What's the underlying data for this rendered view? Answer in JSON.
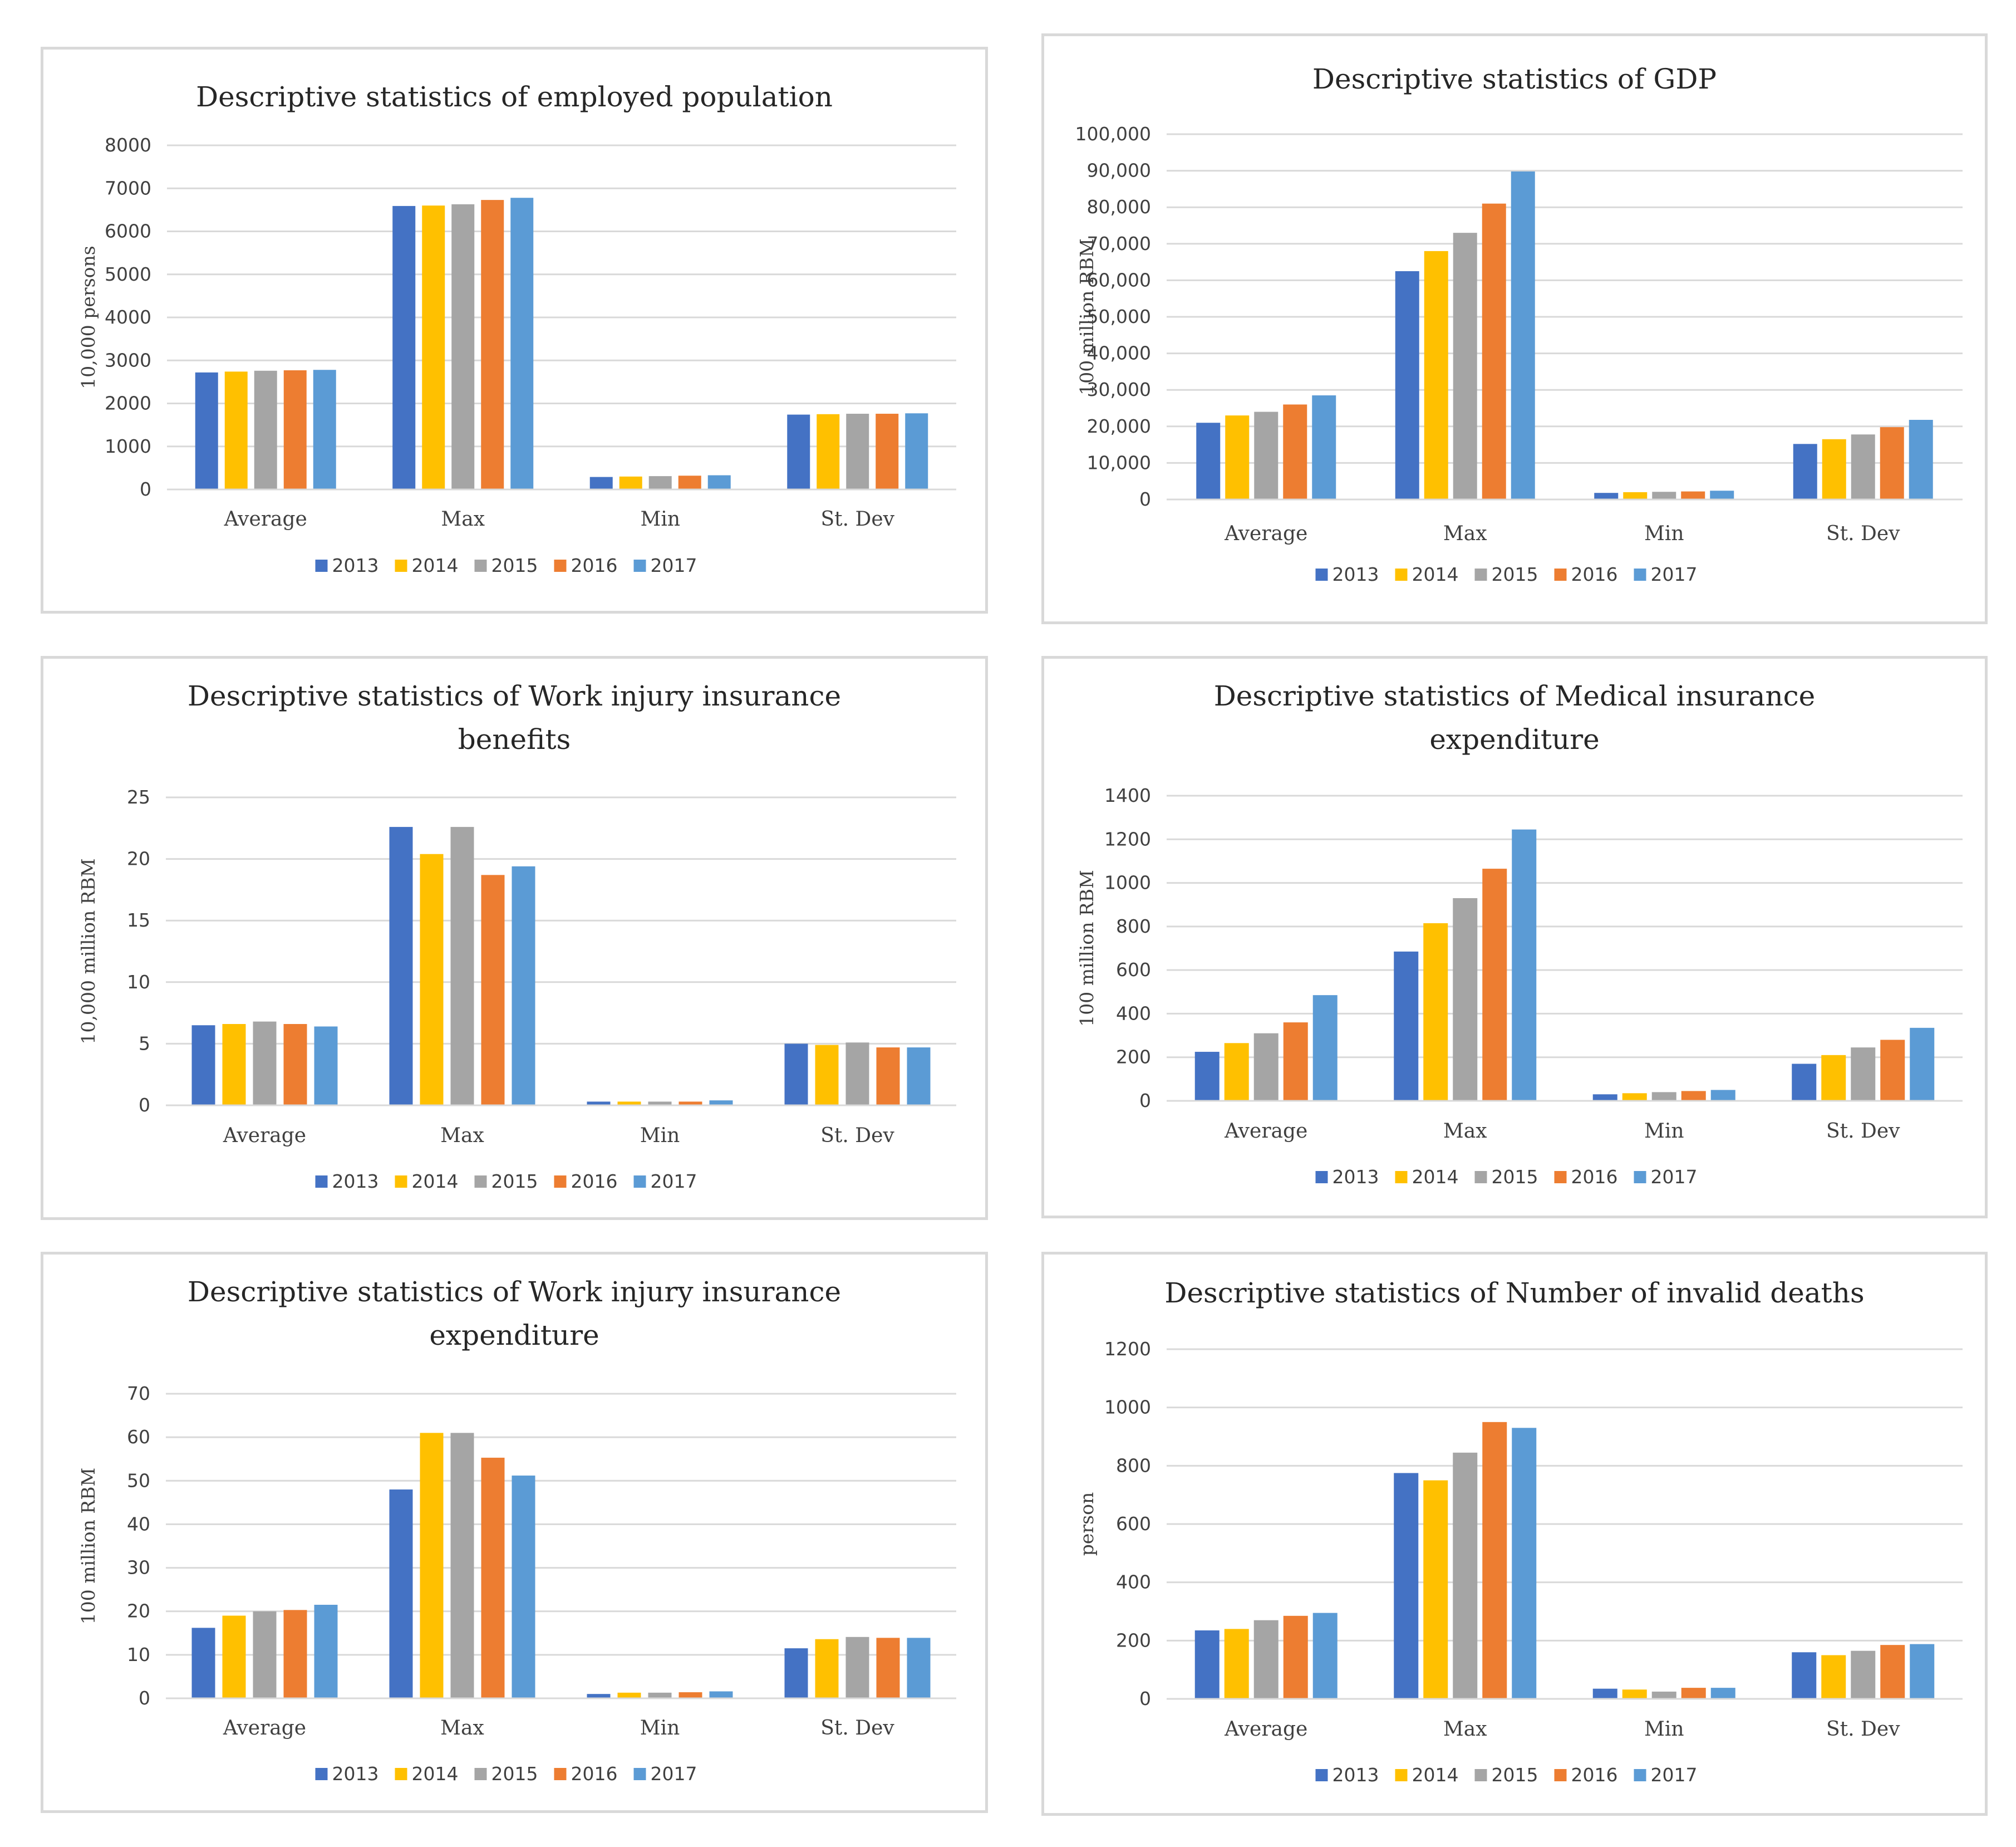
{
  "chart_data": [
    {
      "type": "bar",
      "title": "Descriptive statistics of employed population",
      "title_lines": [
        "Descriptive statistics of employed population"
      ],
      "xlabel": "",
      "ylabel": "10,000 persons",
      "ylim": [
        0,
        8000
      ],
      "ytick_values": [
        0,
        1000,
        2000,
        3000,
        4000,
        5000,
        6000,
        7000,
        8000
      ],
      "ytick_labels": [
        "0",
        "1000",
        "2000",
        "3000",
        "4000",
        "5000",
        "6000",
        "7000",
        "8000"
      ],
      "categories": [
        "Average",
        "Max",
        "Min",
        "St. Dev"
      ],
      "series": [
        {
          "name": "2013",
          "color": "#4472c4",
          "values": [
            2720,
            6590,
            290,
            1740
          ]
        },
        {
          "name": "2014",
          "color": "#ffc000",
          "values": [
            2740,
            6600,
            300,
            1750
          ]
        },
        {
          "name": "2015",
          "color": "#a5a5a5",
          "values": [
            2760,
            6630,
            310,
            1760
          ]
        },
        {
          "name": "2016",
          "color": "#ed7d31",
          "values": [
            2770,
            6730,
            320,
            1760
          ]
        },
        {
          "name": "2017",
          "color": "#5b9bd5",
          "values": [
            2780,
            6780,
            330,
            1770
          ]
        }
      ],
      "grid": true,
      "legend": "bottom"
    },
    {
      "type": "bar",
      "title": "Descriptive statistics of GDP",
      "title_lines": [
        "Descriptive statistics of GDP"
      ],
      "xlabel": "",
      "ylabel": "100 million RBM",
      "ylim": [
        0,
        100000
      ],
      "ytick_values": [
        0,
        10000,
        20000,
        30000,
        40000,
        50000,
        60000,
        70000,
        80000,
        90000,
        100000
      ],
      "ytick_labels": [
        "0",
        "10,000",
        "20,000",
        "30,000",
        "40,000",
        "50,000",
        "60,000",
        "70,000",
        "80,000",
        "90,000",
        "100,000"
      ],
      "categories": [
        "Average",
        "Max",
        "Min",
        "St. Dev"
      ],
      "series": [
        {
          "name": "2013",
          "color": "#4472c4",
          "values": [
            21000,
            62500,
            1800,
            15200
          ]
        },
        {
          "name": "2014",
          "color": "#ffc000",
          "values": [
            23000,
            68000,
            2000,
            16500
          ]
        },
        {
          "name": "2015",
          "color": "#a5a5a5",
          "values": [
            24000,
            73000,
            2100,
            17800
          ]
        },
        {
          "name": "2016",
          "color": "#ed7d31",
          "values": [
            26000,
            81000,
            2200,
            19800
          ]
        },
        {
          "name": "2017",
          "color": "#5b9bd5",
          "values": [
            28500,
            89800,
            2400,
            21800
          ]
        }
      ],
      "grid": true,
      "legend": "bottom"
    },
    {
      "type": "bar",
      "title": "Descriptive statistics of Work injury insurance benefits",
      "title_lines": [
        "Descriptive statistics of Work injury insurance",
        "benefits"
      ],
      "xlabel": "",
      "ylabel": "10,000 million RBM",
      "ylim": [
        0,
        25
      ],
      "ytick_values": [
        0,
        5,
        10,
        15,
        20,
        25
      ],
      "ytick_labels": [
        "0",
        "5",
        "10",
        "15",
        "20",
        "25"
      ],
      "categories": [
        "Average",
        "Max",
        "Min",
        "St. Dev"
      ],
      "series": [
        {
          "name": "2013",
          "color": "#4472c4",
          "values": [
            6.5,
            22.6,
            0.3,
            5.0
          ]
        },
        {
          "name": "2014",
          "color": "#ffc000",
          "values": [
            6.6,
            20.4,
            0.3,
            4.9
          ]
        },
        {
          "name": "2015",
          "color": "#a5a5a5",
          "values": [
            6.8,
            22.6,
            0.3,
            5.1
          ]
        },
        {
          "name": "2016",
          "color": "#ed7d31",
          "values": [
            6.6,
            18.7,
            0.3,
            4.7
          ]
        },
        {
          "name": "2017",
          "color": "#5b9bd5",
          "values": [
            6.4,
            19.4,
            0.4,
            4.7
          ]
        }
      ],
      "grid": true,
      "legend": "bottom"
    },
    {
      "type": "bar",
      "title": "Descriptive statistics of Medical insurance expenditure",
      "title_lines": [
        "Descriptive statistics of Medical insurance",
        "expenditure"
      ],
      "xlabel": "",
      "ylabel": "100 million RBM",
      "ylim": [
        0,
        1400
      ],
      "ytick_values": [
        0,
        200,
        400,
        600,
        800,
        1000,
        1200,
        1400
      ],
      "ytick_labels": [
        "0",
        "200",
        "400",
        "600",
        "800",
        "1000",
        "1200",
        "1400"
      ],
      "categories": [
        "Average",
        "Max",
        "Min",
        "St. Dev"
      ],
      "series": [
        {
          "name": "2013",
          "color": "#4472c4",
          "values": [
            225,
            685,
            30,
            170
          ]
        },
        {
          "name": "2014",
          "color": "#ffc000",
          "values": [
            265,
            815,
            35,
            210
          ]
        },
        {
          "name": "2015",
          "color": "#a5a5a5",
          "values": [
            310,
            930,
            40,
            245
          ]
        },
        {
          "name": "2016",
          "color": "#ed7d31",
          "values": [
            360,
            1065,
            45,
            280
          ]
        },
        {
          "name": "2017",
          "color": "#5b9bd5",
          "values": [
            485,
            1245,
            50,
            335
          ]
        }
      ],
      "grid": true,
      "legend": "bottom"
    },
    {
      "type": "bar",
      "title": "Descriptive statistics of Work injury insurance expenditure",
      "title_lines": [
        "Descriptive statistics of Work injury insurance",
        "expenditure"
      ],
      "xlabel": "",
      "ylabel": "100 million RBM",
      "ylim": [
        0,
        70
      ],
      "ytick_values": [
        0,
        10,
        20,
        30,
        40,
        50,
        60,
        70
      ],
      "ytick_labels": [
        "0",
        "10",
        "20",
        "30",
        "40",
        "50",
        "60",
        "70"
      ],
      "categories": [
        "Average",
        "Max",
        "Min",
        "St. Dev"
      ],
      "series": [
        {
          "name": "2013",
          "color": "#4472c4",
          "values": [
            16.2,
            48,
            1.0,
            11.5
          ]
        },
        {
          "name": "2014",
          "color": "#ffc000",
          "values": [
            19,
            61,
            1.3,
            13.6
          ]
        },
        {
          "name": "2015",
          "color": "#a5a5a5",
          "values": [
            20,
            61,
            1.3,
            14.1
          ]
        },
        {
          "name": "2016",
          "color": "#ed7d31",
          "values": [
            20.3,
            55.3,
            1.4,
            13.9
          ]
        },
        {
          "name": "2017",
          "color": "#5b9bd5",
          "values": [
            21.5,
            51.2,
            1.6,
            13.9
          ]
        }
      ],
      "grid": true,
      "legend": "bottom"
    },
    {
      "type": "bar",
      "title": "Descriptive statistics of Number of invalid deaths",
      "title_lines": [
        "Descriptive statistics of Number of invalid deaths"
      ],
      "xlabel": "",
      "ylabel": "person",
      "ylim": [
        0,
        1200
      ],
      "ytick_values": [
        0,
        200,
        400,
        600,
        800,
        1000,
        1200
      ],
      "ytick_labels": [
        "0",
        "200",
        "400",
        "600",
        "800",
        "1000",
        "1200"
      ],
      "categories": [
        "Average",
        "Max",
        "Min",
        "St. Dev"
      ],
      "series": [
        {
          "name": "2013",
          "color": "#4472c4",
          "values": [
            235,
            775,
            35,
            160
          ]
        },
        {
          "name": "2014",
          "color": "#ffc000",
          "values": [
            240,
            750,
            32,
            150
          ]
        },
        {
          "name": "2015",
          "color": "#a5a5a5",
          "values": [
            270,
            845,
            25,
            165
          ]
        },
        {
          "name": "2016",
          "color": "#ed7d31",
          "values": [
            285,
            950,
            38,
            185
          ]
        },
        {
          "name": "2017",
          "color": "#5b9bd5",
          "values": [
            295,
            930,
            38,
            188
          ]
        }
      ],
      "grid": true,
      "legend": "bottom"
    }
  ]
}
